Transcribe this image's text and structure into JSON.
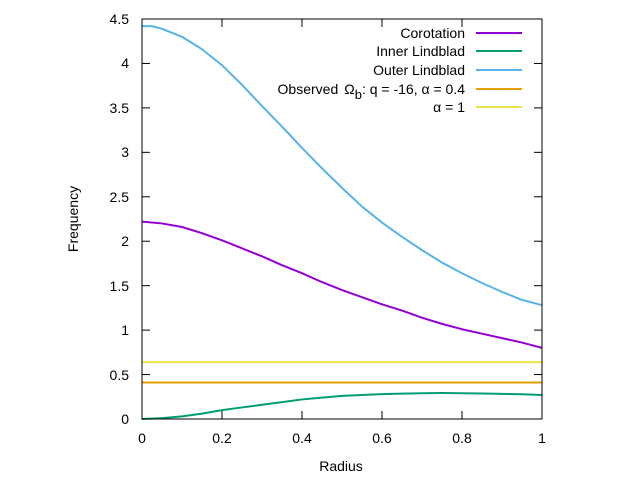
{
  "chart_data": {
    "type": "line",
    "xlabel": "Radius",
    "ylabel": "Frequency",
    "xlim": [
      0,
      1
    ],
    "ylim": [
      0,
      4.5
    ],
    "xticks": [
      0,
      0.2,
      0.4,
      0.6,
      0.8,
      1
    ],
    "xtick_labels": [
      "0",
      "0.2",
      "0.4",
      "0.6",
      "0.8",
      "1"
    ],
    "yticks": [
      0,
      0.5,
      1,
      1.5,
      2,
      2.5,
      3,
      3.5,
      4,
      4.5
    ],
    "ytick_labels": [
      "0",
      "0.5",
      "1",
      "1.5",
      "2",
      "2.5",
      "3",
      "3.5",
      "4",
      "4.5"
    ],
    "grid": false,
    "legend_position": "top-right",
    "series": [
      {
        "name": "Corotation",
        "legend_label": "Corotation",
        "color": "#9400d3",
        "x": [
          0,
          0.05,
          0.1,
          0.15,
          0.2,
          0.25,
          0.3,
          0.35,
          0.4,
          0.45,
          0.5,
          0.55,
          0.6,
          0.65,
          0.7,
          0.75,
          0.8,
          0.85,
          0.9,
          0.95,
          1.0
        ],
        "y": [
          2.22,
          2.2,
          2.16,
          2.09,
          2.01,
          1.92,
          1.83,
          1.73,
          1.64,
          1.54,
          1.45,
          1.37,
          1.29,
          1.22,
          1.14,
          1.07,
          1.01,
          0.96,
          0.91,
          0.86,
          0.8
        ]
      },
      {
        "name": "Inner Lindblad",
        "legend_label": "Inner Lindblad",
        "color": "#009e73",
        "x": [
          0,
          0.05,
          0.1,
          0.15,
          0.2,
          0.25,
          0.3,
          0.35,
          0.4,
          0.45,
          0.5,
          0.55,
          0.6,
          0.65,
          0.7,
          0.75,
          0.8,
          0.85,
          0.9,
          0.95,
          1.0
        ],
        "y": [
          0.0,
          0.01,
          0.03,
          0.06,
          0.1,
          0.13,
          0.16,
          0.19,
          0.22,
          0.24,
          0.26,
          0.27,
          0.28,
          0.285,
          0.29,
          0.292,
          0.29,
          0.287,
          0.283,
          0.278,
          0.27
        ]
      },
      {
        "name": "Outer Lindblad",
        "legend_label": "Outer Lindblad",
        "color": "#56b4e9",
        "x": [
          0,
          0.025,
          0.05,
          0.1,
          0.15,
          0.2,
          0.25,
          0.3,
          0.35,
          0.4,
          0.45,
          0.5,
          0.55,
          0.6,
          0.65,
          0.7,
          0.75,
          0.8,
          0.85,
          0.9,
          0.95,
          1.0
        ],
        "y": [
          4.42,
          4.42,
          4.39,
          4.3,
          4.16,
          3.98,
          3.76,
          3.52,
          3.29,
          3.05,
          2.82,
          2.6,
          2.39,
          2.21,
          2.05,
          1.9,
          1.76,
          1.64,
          1.53,
          1.43,
          1.34,
          1.28
        ]
      },
      {
        "name": "Observed alpha 0.4",
        "legend_label_pre": "Observed",
        "legend_omega": "Ω",
        "legend_sub": "b",
        "legend_label_post": ": q = -16,  α = 0.4",
        "color": "#e69f00",
        "x": [
          0,
          1
        ],
        "y": [
          0.41,
          0.41
        ]
      },
      {
        "name": "alpha 1",
        "legend_label": "α = 1",
        "color": "#f0e442",
        "x": [
          0,
          1
        ],
        "y": [
          0.64,
          0.64
        ]
      }
    ]
  }
}
